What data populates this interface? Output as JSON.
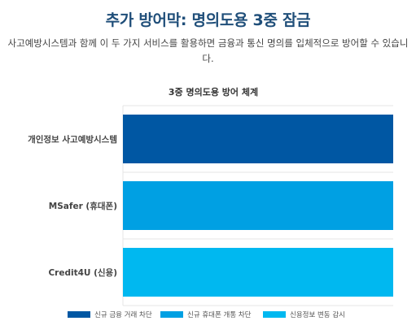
{
  "header": {
    "title": "추가 방어막: 명의도용 3중 잠금",
    "description": "사고예방시스템과 함께 이 두 가지 서비스를 활용하면 금융과 통신 명의를 입체적으로 방어할 수 있습니다."
  },
  "chart_data": {
    "type": "bar",
    "orientation": "horizontal",
    "title": "3중 명의도용 방어 체계",
    "categories": [
      "개인정보 사고예방시스템",
      "MSafer (휴대폰)",
      "Credit4U (신용)"
    ],
    "values": [
      1,
      1,
      1
    ],
    "xlim": [
      0,
      1
    ],
    "bar_colors": [
      "#0057a3",
      "#00a0e3",
      "#00b8f0"
    ],
    "legend": {
      "position": "bottom",
      "entries": [
        {
          "label": "신규 금융 거래 차단",
          "color": "#0057a3"
        },
        {
          "label": "신규 휴대폰 개통 차단",
          "color": "#00a0e3"
        },
        {
          "label": "신용정보 변동 감시",
          "color": "#00b8f0"
        }
      ]
    },
    "grid": true,
    "x_axis_visible": false
  }
}
